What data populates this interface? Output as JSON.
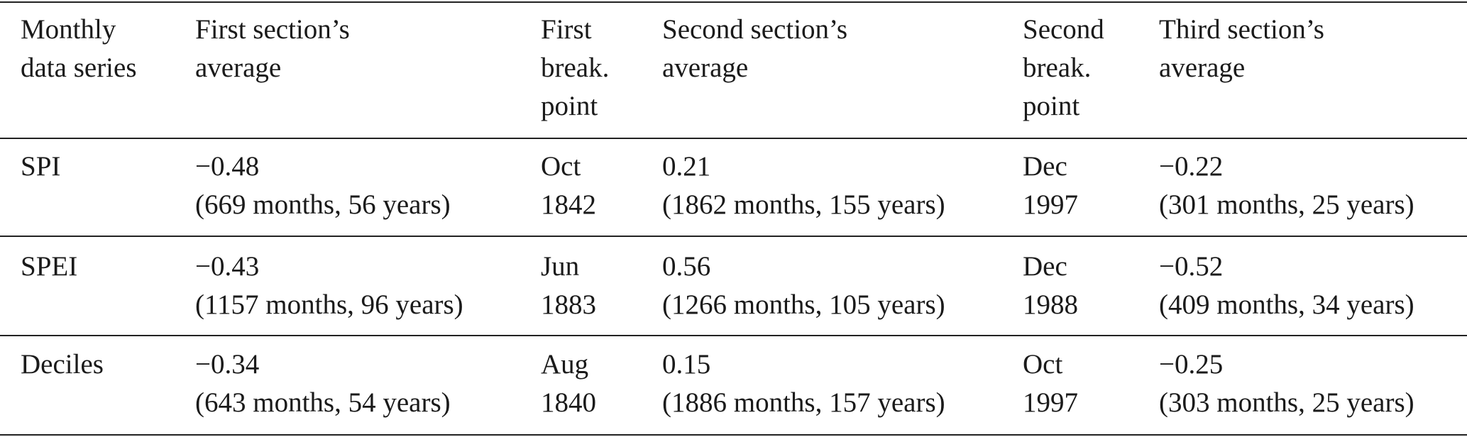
{
  "table": {
    "header": [
      [
        "Monthly",
        "data series"
      ],
      [
        "First section’s",
        "average"
      ],
      [
        "First",
        "break.",
        "point"
      ],
      [
        "Second section’s",
        "average"
      ],
      [
        "Second",
        "break.",
        "point"
      ],
      [
        "Third section’s",
        "average"
      ]
    ],
    "rows": [
      [
        [
          "SPI"
        ],
        [
          "−0.48",
          "(669 months, 56 years)"
        ],
        [
          "Oct",
          "1842"
        ],
        [
          "0.21",
          "(1862 months, 155 years)"
        ],
        [
          "Dec",
          "1997"
        ],
        [
          "−0.22",
          "(301 months, 25 years)"
        ]
      ],
      [
        [
          "SPEI"
        ],
        [
          "−0.43",
          "(1157 months, 96 years)"
        ],
        [
          "Jun",
          "1883"
        ],
        [
          "0.56",
          "(1266 months, 105 years)"
        ],
        [
          "Dec",
          "1988"
        ],
        [
          "−0.52",
          "(409 months, 34 years)"
        ]
      ],
      [
        [
          "Deciles"
        ],
        [
          "−0.34",
          "(643 months, 54 years)"
        ],
        [
          "Aug",
          "1840"
        ],
        [
          "0.15",
          "(1886 months, 157 years)"
        ],
        [
          "Oct",
          "1997"
        ],
        [
          "−0.25",
          "(303 months, 25 years)"
        ]
      ]
    ]
  }
}
